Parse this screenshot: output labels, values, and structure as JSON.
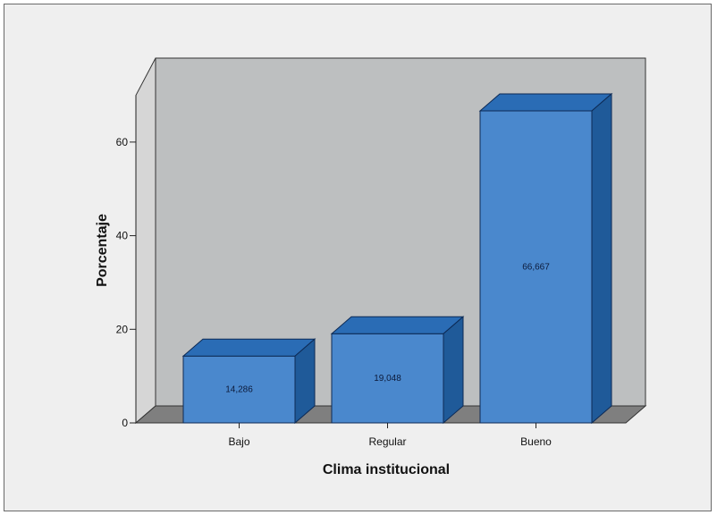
{
  "chart_data": {
    "type": "bar",
    "categories": [
      "Bajo",
      "Regular",
      "Bueno"
    ],
    "values": [
      14.286,
      19.048,
      66.667
    ],
    "data_labels": [
      "14,286",
      "19,048",
      "66,667"
    ],
    "title": "",
    "xlabel": "Clima institucional",
    "ylabel": "Porcentaje",
    "ylim": [
      0,
      70
    ],
    "yticks": [
      0,
      20,
      40,
      60
    ],
    "ytick_labels": [
      "0",
      "20",
      "40",
      "60"
    ],
    "grid": false,
    "legend": "none",
    "style": "3d-bar"
  },
  "colors": {
    "bar_front": "#4a88cd",
    "bar_top": "#2a6cb5",
    "bar_side": "#1f5a99",
    "bar_edge": "#0d2a55",
    "wall_back": "#bdbfc0",
    "wall_side": "#d6d6d6",
    "floor": "#7f7f7f",
    "frame_bg": "#efefef"
  }
}
